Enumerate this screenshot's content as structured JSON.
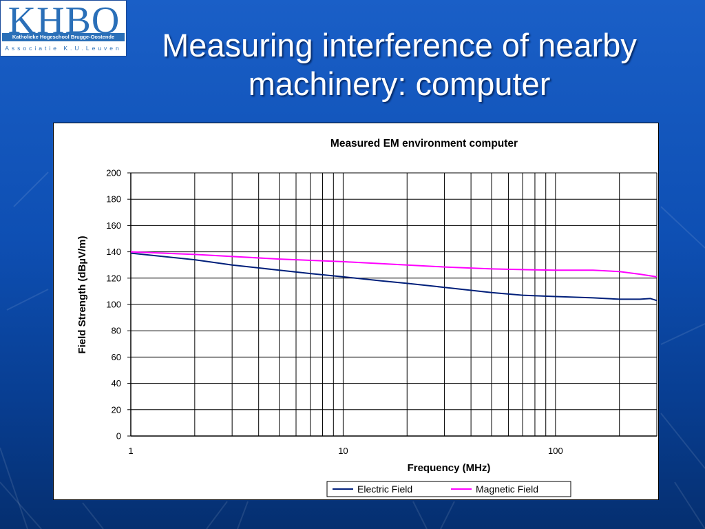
{
  "logo": {
    "main": "KHBO",
    "subtitle": "Katholieke Hogeschool Brugge-Oostende",
    "association": "Associatie K.U.Leuven"
  },
  "slide": {
    "title_line1": "Measuring interference of nearby",
    "title_line2": "machinery: computer"
  },
  "colors": {
    "electric": "#001f7a",
    "magnetic": "#ff00ff"
  },
  "chart_data": {
    "type": "line",
    "title": "Measured EM environment computer",
    "xlabel": "Frequency (MHz)",
    "ylabel": "Field Strength (dBµV/m)",
    "x_scale": "log",
    "xlim": [
      1,
      300
    ],
    "ylim": [
      0,
      200
    ],
    "y_ticks": [
      0,
      20,
      40,
      60,
      80,
      100,
      120,
      140,
      160,
      180,
      200
    ],
    "x_tick_labels": [
      {
        "value": 1,
        "label": "1"
      },
      {
        "value": 10,
        "label": "10"
      },
      {
        "value": 100,
        "label": "100"
      }
    ],
    "x_gridlines": [
      1,
      2,
      3,
      4,
      5,
      6,
      7,
      8,
      9,
      10,
      20,
      30,
      40,
      50,
      60,
      70,
      80,
      90,
      100,
      200,
      300
    ],
    "grid": true,
    "legend_position": "bottom-right",
    "series": [
      {
        "name": "Electric Field",
        "color_key": "electric",
        "x": [
          1,
          2,
          3,
          5,
          7,
          10,
          15,
          20,
          30,
          50,
          70,
          100,
          150,
          200,
          250,
          280,
          300
        ],
        "y": [
          139,
          134,
          130,
          126,
          123.5,
          121,
          118,
          116,
          113,
          109,
          107,
          106,
          105,
          104,
          104,
          104.5,
          103
        ]
      },
      {
        "name": "Magnetic Field",
        "color_key": "magnetic",
        "x": [
          1,
          2,
          5,
          10,
          20,
          30,
          50,
          70,
          100,
          150,
          200,
          250,
          300
        ],
        "y": [
          140,
          138,
          134.5,
          132.5,
          130,
          128.5,
          127,
          126.5,
          126,
          126,
          125,
          123,
          121
        ]
      }
    ]
  }
}
